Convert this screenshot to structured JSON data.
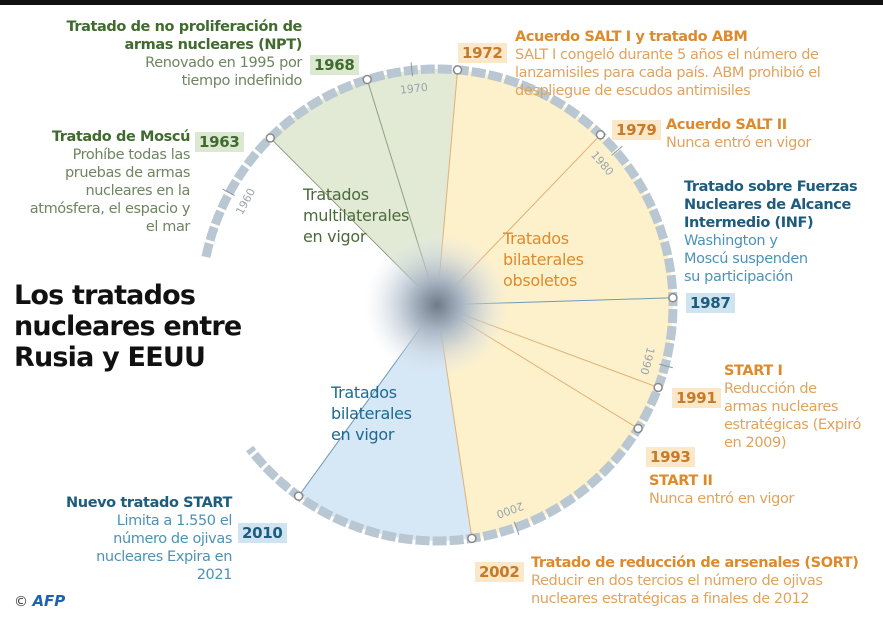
{
  "title": "Los tratados nucleares entre Rusia y EEUU",
  "credit": {
    "copyright": "©",
    "logo": "AFP"
  },
  "colors": {
    "multilateral": "#e2ead6",
    "bilateral_obsolete": "#fdf1cc",
    "bilateral_active": "#d6e7f5",
    "ring": "#b9c7d3"
  },
  "zones": {
    "multilateral": "Tratados multilaterales en vigor",
    "obsolete": "Tratados bilaterales obsoletos",
    "active": "Tratados bilaterales en vigor"
  },
  "axis_ticks": [
    "1960",
    "1970",
    "1980",
    "1990",
    "2000"
  ],
  "events": [
    {
      "year": "1963",
      "title": "Tratado de Moscú",
      "desc": "Prohíbe todas las pruebas de armas nucleares en la atmósfera, el espacio y el mar",
      "group": "multilateral"
    },
    {
      "year": "1968",
      "title": "Tratado de no proliferación de armas nucleares (NPT)",
      "desc": "Renovado en 1995 por tiempo indefinido",
      "group": "multilateral"
    },
    {
      "year": "1972",
      "title": "Acuerdo SALT I y tratado ABM",
      "desc": "SALT I congeló durante 5 años el número de lanzamisiles para cada país. ABM prohibió el despliegue de escudos antimisiles",
      "group": "obsolete"
    },
    {
      "year": "1979",
      "title": "Acuerdo  SALT II",
      "desc": "Nunca entró en vigor",
      "group": "obsolete"
    },
    {
      "year": "1987",
      "title": "Tratado sobre Fuerzas Nucleares de Alcance Intermedio  (INF)",
      "desc": "Washington y Moscú suspenden su participación",
      "group": "active"
    },
    {
      "year": "1991",
      "title": "START I",
      "desc": "Reducción de armas nucleares estratégicas (Expiró en 2009)",
      "group": "obsolete"
    },
    {
      "year": "1993",
      "title": "START II",
      "desc": "Nunca entró en vigor",
      "group": "obsolete"
    },
    {
      "year": "2002",
      "title": "Tratado de reducción de arsenales (SORT)",
      "desc": "Reducir en dos tercios el número de ojivas nucleares estratégicas a finales de 2012",
      "group": "obsolete"
    },
    {
      "year": "2010",
      "title": "Nuevo tratado START",
      "desc": "Limita a 1.550 el número de ojivas nucleares Expira en 2021",
      "group": "active"
    }
  ]
}
